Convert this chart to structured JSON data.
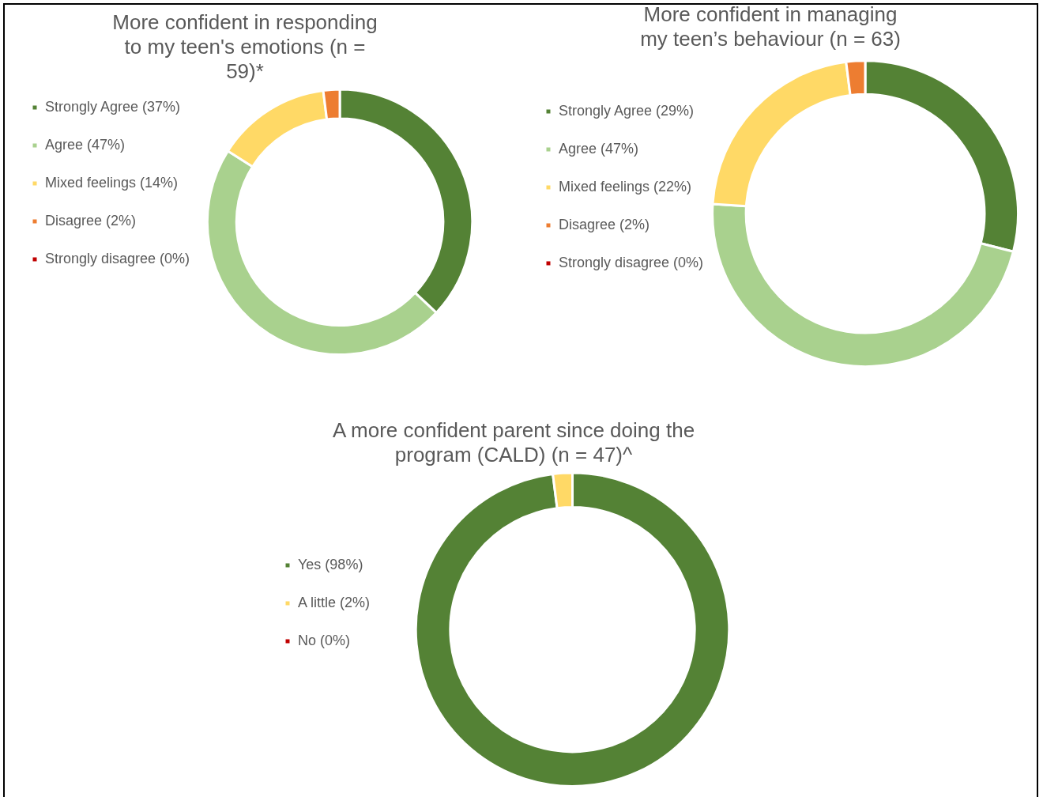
{
  "chart_data": [
    {
      "type": "donut",
      "title": "More confident in responding to my teen's emotions (n = 59)*",
      "categories": [
        "Strongly Agree (37%)",
        "Agree (47%)",
        "Mixed feelings (14%)",
        "Disagree (2%)",
        "Strongly disagree (0%)"
      ],
      "values": [
        37,
        47,
        14,
        2,
        0
      ],
      "colors": [
        "#548235",
        "#a9d18e",
        "#ffd966",
        "#ed7d31",
        "#c00000"
      ],
      "legend": "left"
    },
    {
      "type": "donut",
      "title": "More confident in managing my teen’s behaviour (n = 63)",
      "categories": [
        "Strongly Agree (29%)",
        "Agree (47%)",
        "Mixed feelings (22%)",
        "Disagree (2%)",
        "Strongly disagree (0%)"
      ],
      "values": [
        29,
        47,
        22,
        2,
        0
      ],
      "colors": [
        "#548235",
        "#a9d18e",
        "#ffd966",
        "#ed7d31",
        "#c00000"
      ],
      "legend": "left"
    },
    {
      "type": "donut",
      "title": "A more confident parent since doing the program (CALD) (n = 47)^",
      "categories": [
        "Yes (98%)",
        "A little (2%)",
        "No (0%)"
      ],
      "values": [
        98,
        2,
        0
      ],
      "colors": [
        "#548235",
        "#ffd966",
        "#c00000"
      ],
      "legend": "left"
    }
  ]
}
